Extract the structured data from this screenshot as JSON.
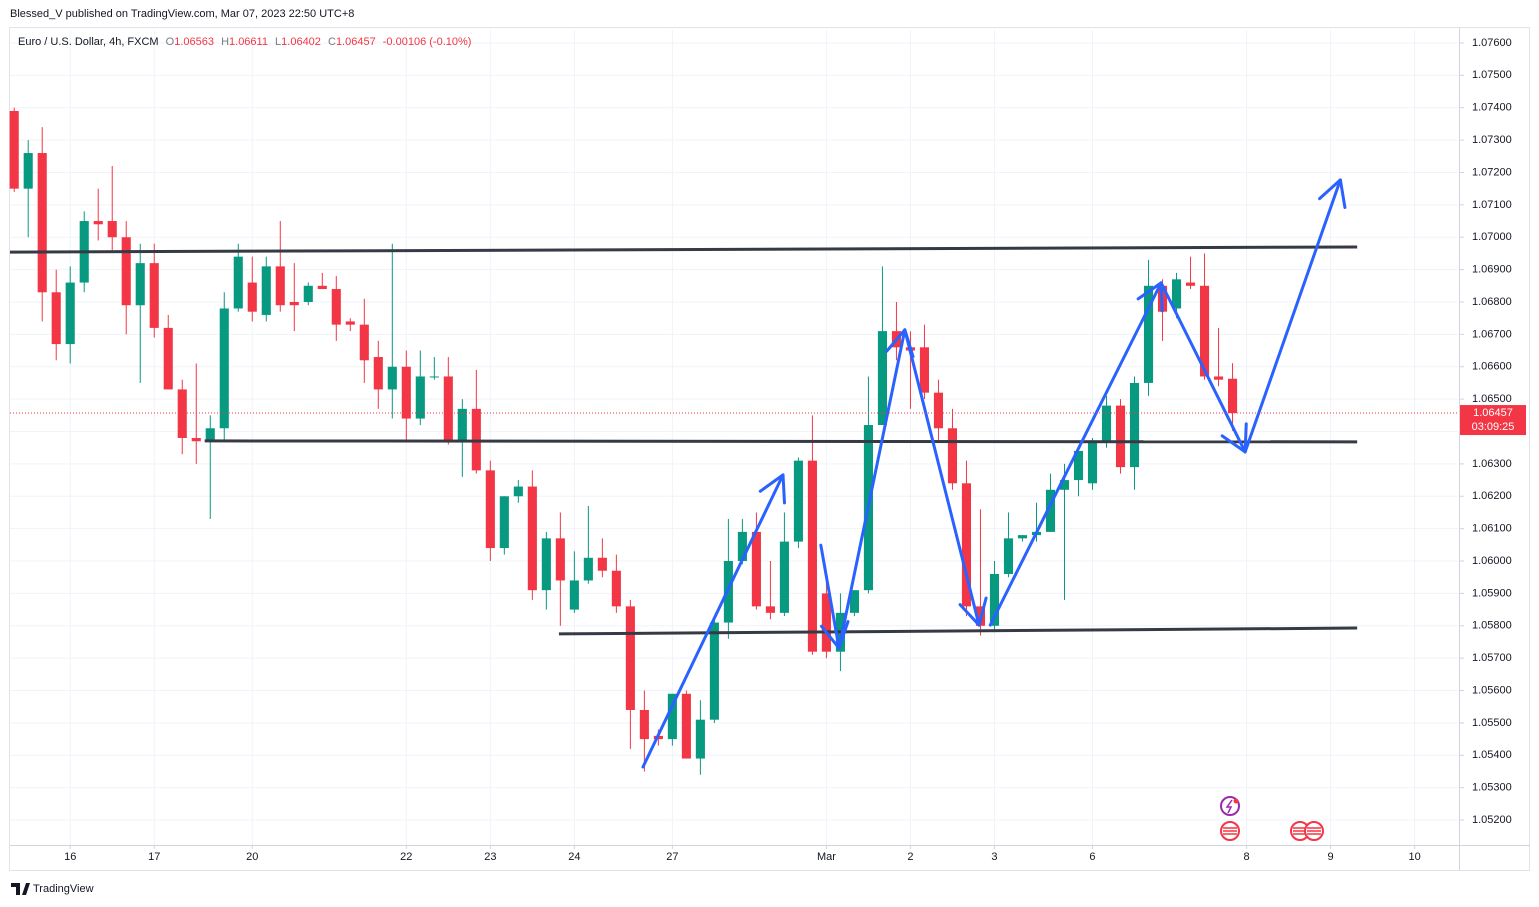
{
  "header": {
    "byline": "Blessed_V published on TradingView.com, Mar 07, 2023 22:50 UTC+8",
    "symbol": "Euro / U.S. Dollar, 4h, FXCM",
    "ohlc": [
      {
        "key": "O",
        "value": "1.06563"
      },
      {
        "key": "H",
        "value": "1.06611"
      },
      {
        "key": "L",
        "value": "1.06402"
      },
      {
        "key": "C",
        "value": "1.06457"
      }
    ],
    "change": "-0.00106 (-0.10%)"
  },
  "footer": {
    "brand": "TradingView"
  },
  "chart_data": {
    "type": "candlestick",
    "colors": {
      "up": "#089981",
      "down": "#f23645"
    },
    "open": [
      1.0739,
      1.0715,
      1.0726,
      1.0683,
      1.0667,
      1.0686,
      1.0705,
      1.0705,
      1.07,
      1.0679,
      1.0692,
      1.0672,
      1.0653,
      1.0638,
      1.0637,
      1.0641,
      1.0678,
      1.0686,
      1.0676,
      1.0691,
      1.068,
      1.068,
      1.0685,
      1.0684,
      1.0674,
      1.0673,
      1.0663,
      1.0653,
      1.066,
      1.0644,
      1.0657,
      1.0657,
      1.0637,
      1.0647,
      1.0628,
      1.0604,
      1.062,
      1.0623,
      1.0591,
      1.0607,
      1.0585,
      1.0594,
      1.0601,
      1.0597,
      1.0586,
      1.0554,
      1.0546,
      1.0545,
      1.0559,
      1.0539,
      1.0551,
      1.0581,
      1.06,
      1.0609,
      1.0586,
      1.0584,
      1.0606,
      1.0631,
      1.059,
      1.0572,
      1.0584,
      1.0591,
      1.0642,
      1.0671,
      1.0666,
      1.0666,
      1.0652,
      1.0641,
      1.0624,
      1.0586,
      1.058,
      1.0596,
      1.0607,
      1.0608,
      1.0609,
      1.0622,
      1.0625,
      1.0624,
      1.0637,
      1.0648,
      1.0629,
      1.0655,
      1.0685,
      1.0678,
      1.0686,
      1.0685,
      1.0657,
      1.06563
    ],
    "high": [
      1.074,
      1.073,
      1.0734,
      1.069,
      1.0691,
      1.0708,
      1.0715,
      1.0722,
      1.0705,
      1.0698,
      1.0698,
      1.0676,
      1.0656,
      1.0661,
      1.0645,
      1.0683,
      1.0698,
      1.0694,
      1.0694,
      1.0705,
      1.0692,
      1.0686,
      1.0689,
      1.0688,
      1.0675,
      1.0681,
      1.0668,
      1.0698,
      1.0665,
      1.0665,
      1.0663,
      1.0663,
      1.065,
      1.0659,
      1.0631,
      1.062,
      1.0625,
      1.0628,
      1.0609,
      1.0615,
      1.0603,
      1.0617,
      1.0607,
      1.0602,
      1.0588,
      1.056,
      1.0548,
      1.0559,
      1.056,
      1.0557,
      1.0583,
      1.0613,
      1.0613,
      1.0615,
      1.06,
      1.0615,
      1.0632,
      1.0645,
      1.0595,
      1.059,
      1.0591,
      1.0657,
      1.0691,
      1.068,
      1.0671,
      1.0673,
      1.0656,
      1.0647,
      1.0631,
      1.0616,
      1.06,
      1.0615,
      1.0608,
      1.0618,
      1.0627,
      1.063,
      1.0634,
      1.0638,
      1.0651,
      1.065,
      1.0657,
      1.0693,
      1.0687,
      1.0689,
      1.0694,
      1.0695,
      1.0672,
      1.06611
    ],
    "low": [
      1.0714,
      1.07,
      1.0674,
      1.0662,
      1.0661,
      1.0683,
      1.0699,
      1.0696,
      1.067,
      1.0655,
      1.0669,
      1.0653,
      1.0633,
      1.063,
      1.0613,
      1.0637,
      1.0677,
      1.0674,
      1.0674,
      1.0677,
      1.0671,
      1.0679,
      1.0684,
      1.0668,
      1.0671,
      1.0655,
      1.0647,
      1.0644,
      1.0637,
      1.0642,
      1.0656,
      1.0636,
      1.0626,
      1.0627,
      1.06,
      1.0602,
      1.0618,
      1.0588,
      1.0585,
      1.058,
      1.0584,
      1.0593,
      1.0595,
      1.0584,
      1.0542,
      1.0535,
      1.0543,
      1.0543,
      1.0539,
      1.0534,
      1.055,
      1.0576,
      1.0599,
      1.0585,
      1.0582,
      1.0583,
      1.0604,
      1.0571,
      1.057,
      1.0566,
      1.0583,
      1.059,
      1.0642,
      1.0662,
      1.0647,
      1.065,
      1.0637,
      1.0622,
      1.0583,
      1.0577,
      1.0578,
      1.0595,
      1.0606,
      1.0606,
      1.0609,
      1.0588,
      1.062,
      1.0622,
      1.0635,
      1.0627,
      1.0622,
      1.0651,
      1.0668,
      1.0675,
      1.0684,
      1.0656,
      1.0654,
      1.06402
    ],
    "close": [
      1.0715,
      1.0726,
      1.0683,
      1.0667,
      1.0686,
      1.0705,
      1.0704,
      1.07,
      1.0679,
      1.0692,
      1.0672,
      1.0653,
      1.0638,
      1.0637,
      1.0641,
      1.0678,
      1.0694,
      1.0677,
      1.0691,
      1.0679,
      1.0679,
      1.0685,
      1.0684,
      1.0673,
      1.0673,
      1.0662,
      1.0653,
      1.066,
      1.0644,
      1.0657,
      1.0657,
      1.0637,
      1.0647,
      1.0628,
      1.0604,
      1.062,
      1.0623,
      1.0591,
      1.0607,
      1.0594,
      1.0594,
      1.0601,
      1.0597,
      1.0586,
      1.0554,
      1.0545,
      1.0545,
      1.0559,
      1.0539,
      1.0551,
      1.0581,
      1.06,
      1.0609,
      1.0586,
      1.0584,
      1.0606,
      1.0631,
      1.0572,
      1.0572,
      1.0584,
      1.0591,
      1.0642,
      1.0671,
      1.0666,
      1.0665,
      1.0652,
      1.0641,
      1.0624,
      1.0586,
      1.058,
      1.0596,
      1.0607,
      1.0608,
      1.0609,
      1.0622,
      1.0625,
      1.0634,
      1.0637,
      1.0648,
      1.0629,
      1.0655,
      1.0685,
      1.0677,
      1.0687,
      1.0685,
      1.0657,
      1.0656,
      1.06457
    ],
    "xlim": [
      -0.3,
      103.1
    ],
    "xticks": [
      {
        "value": 4,
        "label": "16"
      },
      {
        "value": 10,
        "label": "17"
      },
      {
        "value": 17,
        "label": "20"
      },
      {
        "value": 28,
        "label": "22"
      },
      {
        "value": 34,
        "label": "23"
      },
      {
        "value": 40,
        "label": "24"
      },
      {
        "value": 47,
        "label": "27"
      },
      {
        "value": 58,
        "label": "Mar"
      },
      {
        "value": 64,
        "label": "2"
      },
      {
        "value": 70,
        "label": "3"
      },
      {
        "value": 77,
        "label": "6"
      },
      {
        "value": 88,
        "label": "8"
      },
      {
        "value": 94,
        "label": "9"
      },
      {
        "value": 100,
        "label": "10"
      }
    ],
    "ylim": [
      1.05123,
      1.0764
    ],
    "yticks": [
      {
        "value": 1.052,
        "label": "1.05200"
      },
      {
        "value": 1.053,
        "label": "1.05300"
      },
      {
        "value": 1.054,
        "label": "1.05400"
      },
      {
        "value": 1.055,
        "label": "1.05500"
      },
      {
        "value": 1.056,
        "label": "1.05600"
      },
      {
        "value": 1.057,
        "label": "1.05700"
      },
      {
        "value": 1.058,
        "label": "1.05800"
      },
      {
        "value": 1.059,
        "label": "1.05900"
      },
      {
        "value": 1.06,
        "label": "1.06000"
      },
      {
        "value": 1.061,
        "label": "1.06100"
      },
      {
        "value": 1.062,
        "label": "1.06200"
      },
      {
        "value": 1.063,
        "label": "1.06300"
      },
      {
        "value": 1.064,
        "label": "1.06400"
      },
      {
        "value": 1.065,
        "label": "1.06500"
      },
      {
        "value": 1.066,
        "label": "1.06600"
      },
      {
        "value": 1.067,
        "label": "1.06700"
      },
      {
        "value": 1.068,
        "label": "1.06800"
      },
      {
        "value": 1.069,
        "label": "1.06900"
      },
      {
        "value": 1.07,
        "label": "1.07000"
      },
      {
        "value": 1.071,
        "label": "1.07100"
      },
      {
        "value": 1.072,
        "label": "1.07200"
      },
      {
        "value": 1.073,
        "label": "1.07300"
      },
      {
        "value": 1.074,
        "label": "1.07400"
      },
      {
        "value": 1.075,
        "label": "1.07500"
      },
      {
        "value": 1.076,
        "label": "1.07600"
      }
    ],
    "grid": true,
    "last_price": {
      "value": 1.06457,
      "label": "1.06457",
      "countdown": "03:09:25",
      "color": "#f23645"
    },
    "drawings": {
      "lines": {
        "color": "#363a45",
        "items": [
          {
            "x": [
              -0.3,
              95.9
            ],
            "y": [
              1.06954,
              1.0697
            ]
          },
          {
            "x": [
              13.6,
              95.9
            ],
            "y": [
              1.06371,
              1.06368
            ]
          },
          {
            "x": [
              38.9,
              95.9
            ],
            "y": [
              1.05775,
              1.05793
            ]
          }
        ]
      },
      "arrows": {
        "color": "#2962ff",
        "items": [
          {
            "x": [
              44.9,
              54.9
            ],
            "y": [
              1.05364,
              1.06266
            ]
          },
          {
            "x": [
              57.6,
              58.9
            ],
            "y": [
              1.06049,
              1.05731
            ]
          },
          {
            "x": [
              58.9,
              63.6
            ],
            "y": [
              1.05731,
              1.06714
            ]
          },
          {
            "x": [
              63.6,
              68.9
            ],
            "y": [
              1.06714,
              1.05802
            ]
          },
          {
            "x": [
              69.7,
              81.9
            ],
            "y": [
              1.05802,
              1.06859
            ]
          },
          {
            "x": [
              81.9,
              87.9
            ],
            "y": [
              1.06859,
              1.06337
            ]
          },
          {
            "x": [
              87.9,
              94.7
            ],
            "y": [
              1.06337,
              1.07177
            ]
          }
        ]
      }
    }
  }
}
